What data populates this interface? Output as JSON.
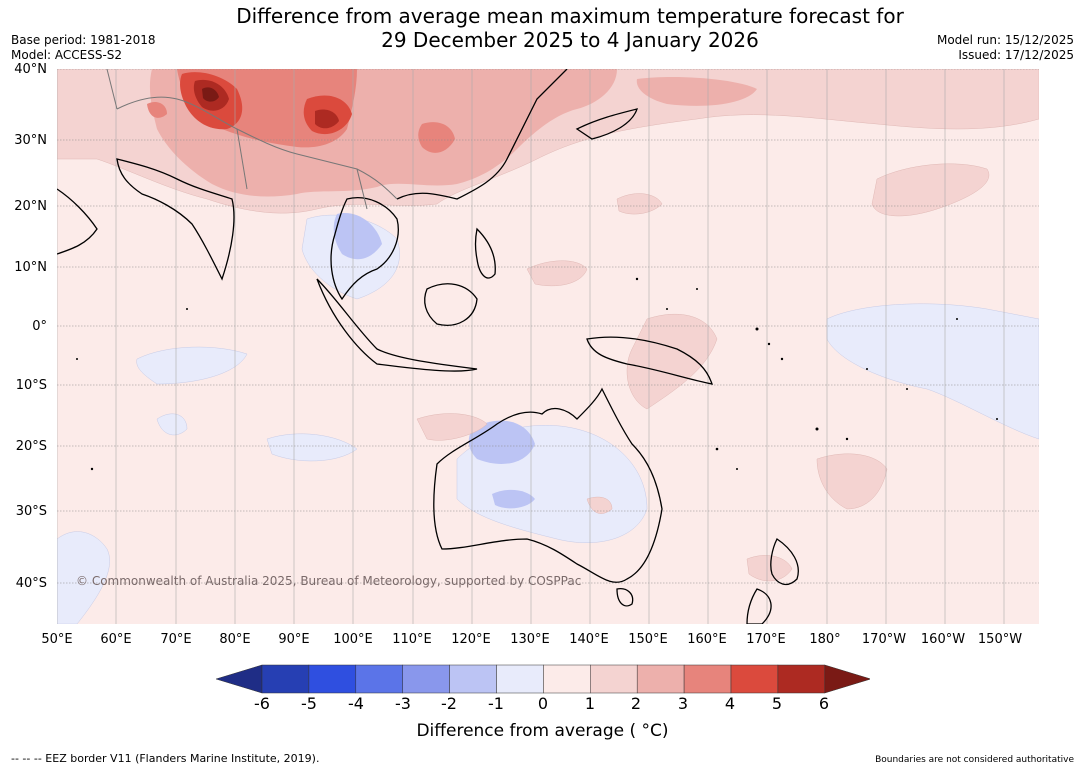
{
  "title": {
    "line1": "Difference from average mean maximum temperature forecast for",
    "line2": "29 December 2025 to 4 January 2026"
  },
  "meta_left": {
    "base_period": "Base period: 1981-2018",
    "model": "Model: ACCESS-S2"
  },
  "meta_right": {
    "model_run": "Model run: 15/12/2025",
    "issued": "Issued: 17/12/2025"
  },
  "map": {
    "latitude_labels": [
      "40°N",
      "30°N",
      "20°N",
      "10°N",
      "0°",
      "10°S",
      "20°S",
      "30°S",
      "40°S"
    ],
    "longitude_labels": [
      "50°E",
      "60°E",
      "70°E",
      "80°E",
      "90°E",
      "100°E",
      "110°E",
      "120°E",
      "130°E",
      "140°E",
      "150°E",
      "160°E",
      "170°E",
      "180°",
      "170°W",
      "160°W",
      "150°W"
    ],
    "copyright": "© Commonwealth of Australia 2025, Bureau of Meteorology, supported by COSPPac",
    "regions_warm": [
      "China",
      "Tibetan Plateau",
      "India north",
      "Northwest Pacific"
    ],
    "regions_cool": [
      "Indochina",
      "Western Australia interior",
      "Central Pacific"
    ]
  },
  "colorbar": {
    "ticks": [
      "-6",
      "-5",
      "-4",
      "-3",
      "-2",
      "-1",
      "0",
      "1",
      "2",
      "3",
      "4",
      "5",
      "6"
    ],
    "colors": [
      "#1f2d86",
      "#263fb3",
      "#2f4fe0",
      "#5b74e8",
      "#8997ec",
      "#bcc4f4",
      "#e8ebfb",
      "#fcebe9",
      "#f4d3d1",
      "#edb0ac",
      "#e7847c",
      "#db4a3d",
      "#ad2a22",
      "#7a1a15"
    ],
    "title": "Difference from average ( °C)"
  },
  "footer": {
    "left": "--  --  -- EEZ border V11 (Flanders Marine Institute, 2019).",
    "right": "Boundaries are not considered authoritative"
  }
}
